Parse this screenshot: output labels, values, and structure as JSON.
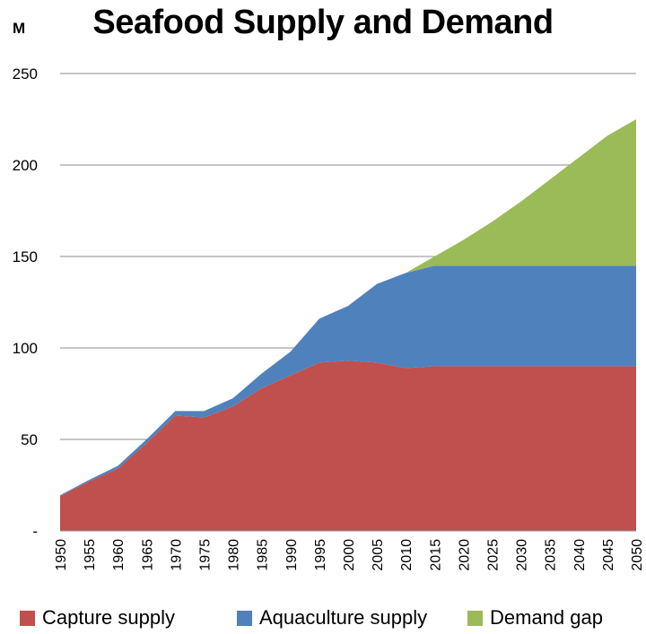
{
  "chart_data": {
    "type": "area",
    "stacked": true,
    "title": "Seafood Supply and Demand",
    "ylabel": "M",
    "xlabel": "",
    "ylim": [
      0,
      250
    ],
    "y_ticks": [
      "-",
      "50",
      "100",
      "150",
      "200",
      "250"
    ],
    "y_tick_values": [
      0,
      50,
      100,
      150,
      200,
      250
    ],
    "grid": true,
    "legend_position": "bottom",
    "x": [
      "1950",
      "1955",
      "1960",
      "1965",
      "1970",
      "1975",
      "1980",
      "1985",
      "1990",
      "1995",
      "2000",
      "2005",
      "2010",
      "2015",
      "2020",
      "2025",
      "2030",
      "2035",
      "2040",
      "2045",
      "2050"
    ],
    "series": [
      {
        "name": "Capture supply",
        "color": "#c0504d",
        "values": [
          19,
          27,
          34,
          48,
          63,
          62,
          68,
          78,
          85,
          92,
          93,
          92,
          89,
          90,
          90,
          90,
          90,
          90,
          90,
          90,
          90
        ]
      },
      {
        "name": "Aquaculture supply",
        "color": "#4f81bd",
        "values": [
          0.5,
          0.8,
          1.5,
          2,
          2.5,
          3.5,
          4.5,
          8,
          13,
          24,
          30,
          43,
          52,
          55,
          55,
          55,
          55,
          55,
          55,
          55,
          55
        ]
      },
      {
        "name": "Demand gap",
        "color": "#9bbb59",
        "values": [
          0,
          0,
          0,
          0,
          0,
          0,
          0,
          0,
          0,
          0,
          0,
          0,
          0,
          5,
          14,
          24,
          35,
          47,
          59,
          71,
          80
        ]
      }
    ]
  }
}
